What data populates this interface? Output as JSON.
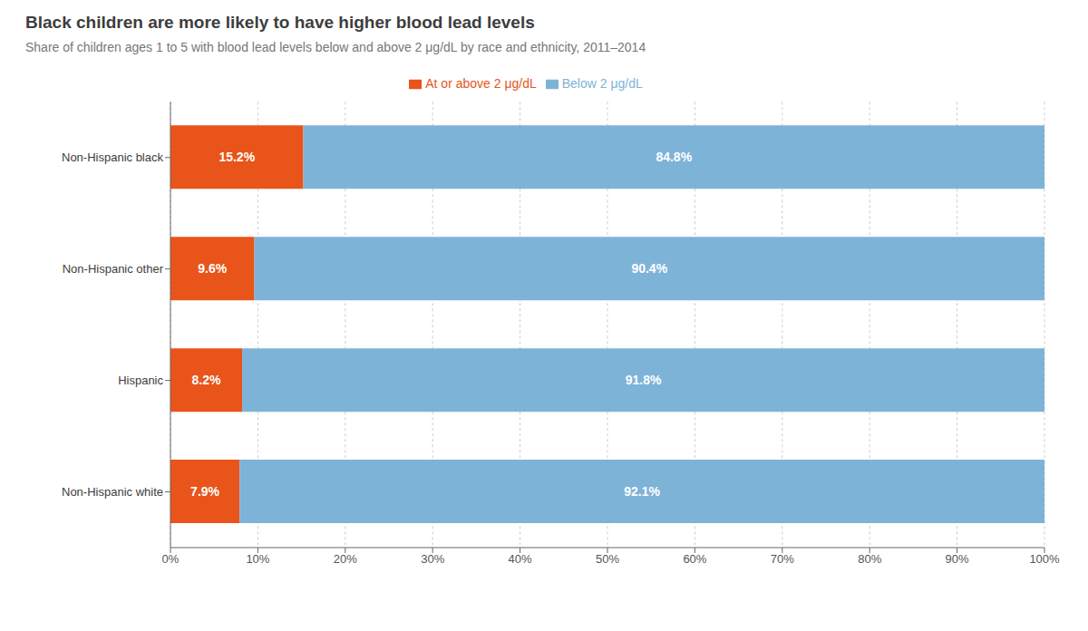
{
  "chart_data": {
    "type": "bar",
    "orientation": "horizontal",
    "stacked": true,
    "title": "Black children are more likely to have higher blood lead levels",
    "subtitle": "Share of children ages 1 to 5 with blood lead levels below and above 2 μg/dL by race and ethnicity, 2011–2014",
    "categories": [
      "Non-Hispanic black",
      "Non-Hispanic other",
      "Hispanic",
      "Non-Hispanic white"
    ],
    "series": [
      {
        "name": "At or above 2 μg/dL",
        "color": "#E8541A",
        "values": [
          15.2,
          9.6,
          8.2,
          7.9
        ],
        "value_labels": [
          "15.2%",
          "9.6%",
          "8.2%",
          "7.9%"
        ]
      },
      {
        "name": "Below 2 μg/dL",
        "color": "#7EB3D8",
        "values": [
          84.8,
          90.4,
          91.8,
          92.1
        ],
        "value_labels": [
          "84.8%",
          "90.4%",
          "91.8%",
          "92.1%"
        ]
      }
    ],
    "xlim": [
      0,
      100
    ],
    "xticks": [
      {
        "value": 0,
        "label": "0%"
      },
      {
        "value": 10,
        "label": "10%"
      },
      {
        "value": 20,
        "label": "20%"
      },
      {
        "value": 30,
        "label": "30%"
      },
      {
        "value": 40,
        "label": "40%"
      },
      {
        "value": 50,
        "label": "50%"
      },
      {
        "value": 60,
        "label": "60%"
      },
      {
        "value": 70,
        "label": "70%"
      },
      {
        "value": 80,
        "label": "80%"
      },
      {
        "value": 90,
        "label": "90%"
      },
      {
        "value": 100,
        "label": "100%"
      }
    ],
    "grid": true,
    "legend": "top",
    "data_labels": true
  }
}
